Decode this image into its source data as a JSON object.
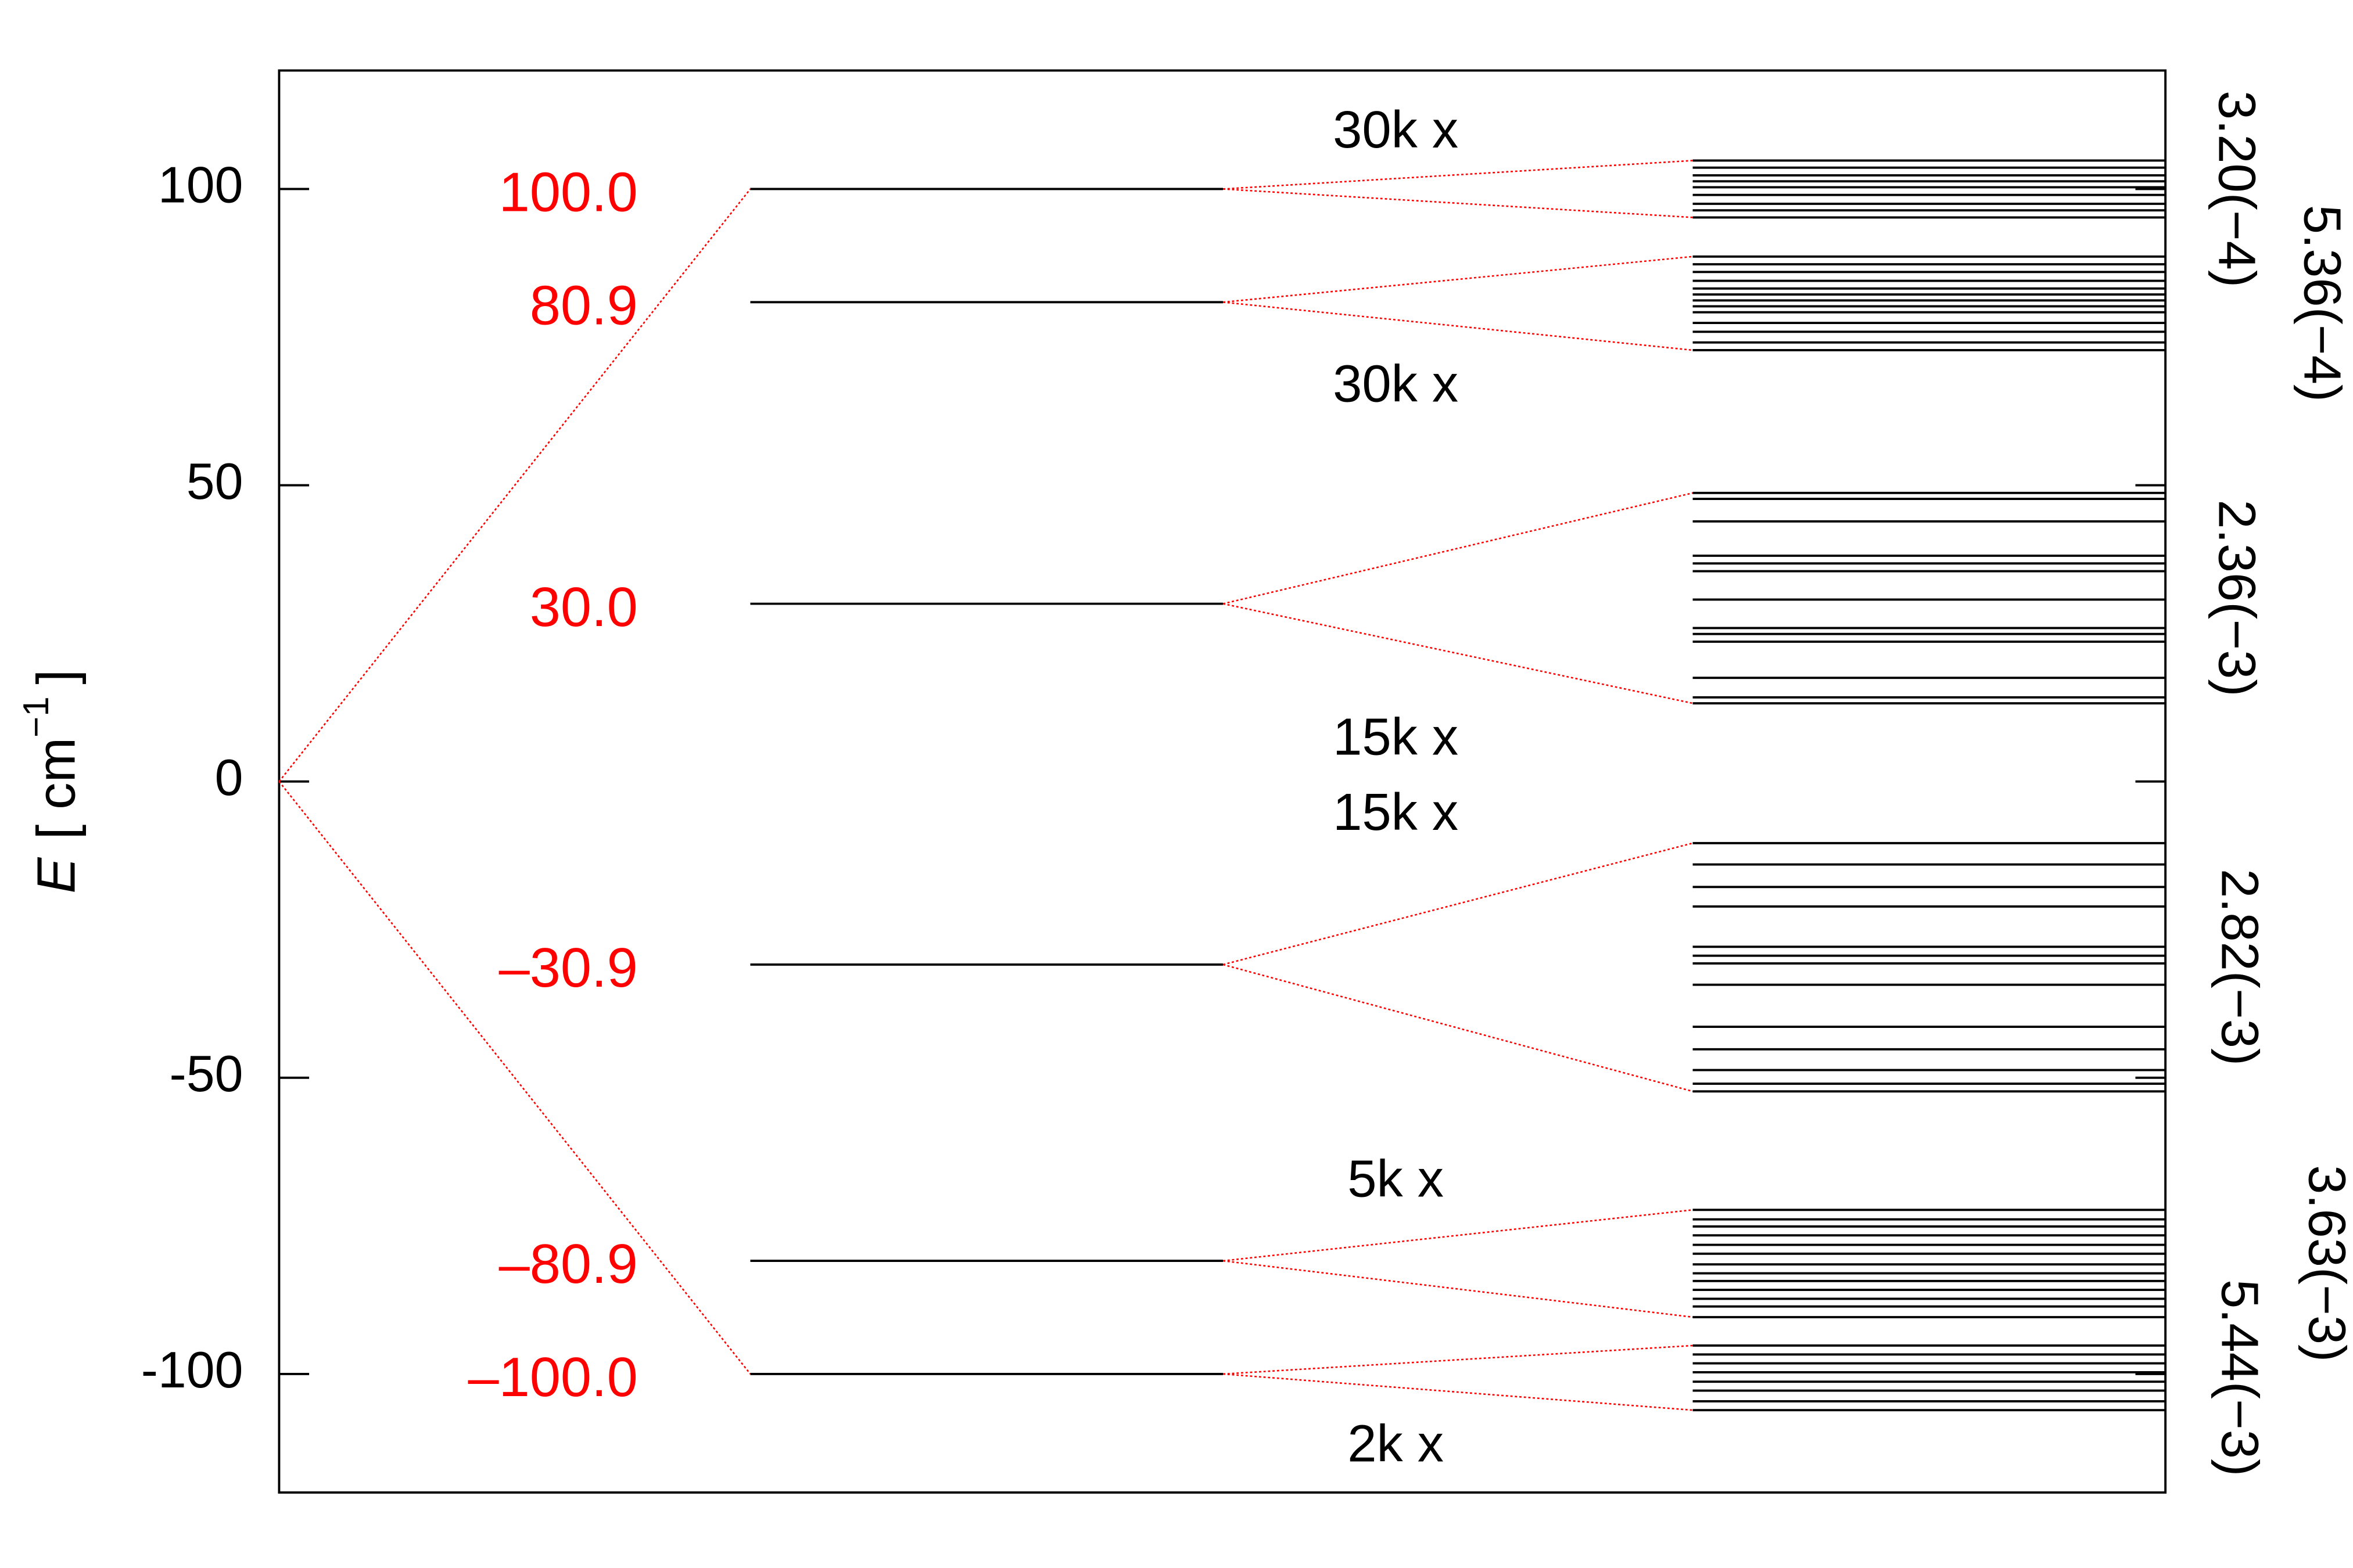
{
  "chart_data": {
    "type": "level-diagram",
    "ylabel": {
      "symbol": "E",
      "unit": "[ cm",
      "exponent": "−1",
      "close": "]"
    },
    "ylim": [
      -120,
      120
    ],
    "yticks": [
      -100,
      -50,
      0,
      50,
      100
    ],
    "connector_color": "#ff0000",
    "line_color": "#000000",
    "levels": {
      "values": [
        100,
        80.9,
        30,
        -30.9,
        -80.9,
        -100
      ],
      "value_labels": [
        "100.0",
        "80.9",
        "30.0",
        "–30.9",
        "–80.9",
        "–100.0"
      ]
    },
    "splittings": [
      {
        "multiplicity": "30k x",
        "label": "3.20(−4)",
        "values": [
          104.8,
          103.6,
          102.3,
          101.3,
          100.3,
          99.0,
          97.5,
          96.4,
          95.2
        ]
      },
      {
        "multiplicity": "30k x",
        "label": "5.36(−4)",
        "values": [
          88.6,
          87.3,
          86.0,
          84.5,
          83.2,
          82.2,
          81.2,
          80.2,
          79.2,
          77.4,
          75.9,
          74.1,
          72.8
        ]
      },
      {
        "multiplicity": "15k x",
        "label": "2.36(−3)",
        "values": [
          48.7,
          47.7,
          43.9,
          38.1,
          36.8,
          35.5,
          30.7,
          25.9,
          24.9,
          23.6,
          17.5,
          14.2,
          13.2
        ]
      },
      {
        "multiplicity": "15k x",
        "label": "2.82(−3)",
        "values": [
          -10.4,
          -14.0,
          -17.8,
          -21.1,
          -27.9,
          -29.4,
          -30.7,
          -34.3,
          -41.4,
          -45.2,
          -48.7,
          -51.0,
          -52.3
        ]
      },
      {
        "multiplicity": "5k x",
        "label": "3.63(−3)",
        "values": [
          -72.3,
          -73.9,
          -75.1,
          -76.6,
          -78.2,
          -79.7,
          -81.5,
          -83.0,
          -84.3,
          -85.8,
          -87.3,
          -88.6,
          -90.4
        ]
      },
      {
        "multiplicity": "2k x",
        "label": "5.44(−3)",
        "values": [
          -95.2,
          -96.7,
          -98.2,
          -99.7,
          -101.3,
          -102.8,
          -104.6,
          -106.1
        ]
      }
    ]
  }
}
